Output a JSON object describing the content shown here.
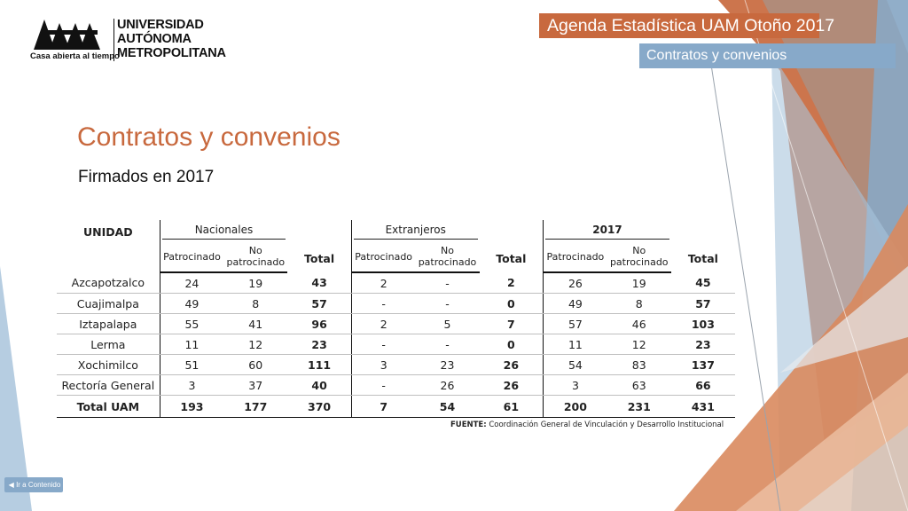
{
  "brand": {
    "name_lines": [
      "UNIVERSIDAD",
      "AUTÓNOMA",
      "METROPOLITANA"
    ],
    "tagline": "Casa abierta al tiempo",
    "logo_icon": "uam-logo-icon"
  },
  "header": {
    "agenda_title": "Agenda Estadística UAM  Otoño 2017",
    "section": "Contratos y convenios"
  },
  "page": {
    "title": "Contratos y convenios",
    "subtitle": "Firmados en 2017"
  },
  "table": {
    "unit_header": "UNIDAD",
    "groups": [
      "Nacionales",
      "Extranjeros",
      "2017"
    ],
    "subheaders": {
      "patrocinado": "Patrocinado",
      "no_patrocinado_1": "No",
      "no_patrocinado_2": "patrocinado",
      "total": "Total"
    },
    "rows": [
      {
        "unidad": "Azcapotzalco",
        "nac_p": "24",
        "nac_np": "19",
        "nac_t": "43",
        "ext_p": "2",
        "ext_np": "-",
        "ext_t": "2",
        "y_p": "26",
        "y_np": "19",
        "y_t": "45"
      },
      {
        "unidad": "Cuajimalpa",
        "nac_p": "49",
        "nac_np": "8",
        "nac_t": "57",
        "ext_p": "-",
        "ext_np": "-",
        "ext_t": "0",
        "y_p": "49",
        "y_np": "8",
        "y_t": "57"
      },
      {
        "unidad": "Iztapalapa",
        "nac_p": "55",
        "nac_np": "41",
        "nac_t": "96",
        "ext_p": "2",
        "ext_np": "5",
        "ext_t": "7",
        "y_p": "57",
        "y_np": "46",
        "y_t": "103"
      },
      {
        "unidad": "Lerma",
        "nac_p": "11",
        "nac_np": "12",
        "nac_t": "23",
        "ext_p": "-",
        "ext_np": "-",
        "ext_t": "0",
        "y_p": "11",
        "y_np": "12",
        "y_t": "23"
      },
      {
        "unidad": "Xochimilco",
        "nac_p": "51",
        "nac_np": "60",
        "nac_t": "111",
        "ext_p": "3",
        "ext_np": "23",
        "ext_t": "26",
        "y_p": "54",
        "y_np": "83",
        "y_t": "137"
      },
      {
        "unidad": "Rectoría General",
        "nac_p": "3",
        "nac_np": "37",
        "nac_t": "40",
        "ext_p": "-",
        "ext_np": "26",
        "ext_t": "26",
        "y_p": "3",
        "y_np": "63",
        "y_t": "66"
      }
    ],
    "total_row": {
      "unidad": "Total UAM",
      "nac_p": "193",
      "nac_np": "177",
      "nac_t": "370",
      "ext_p": "7",
      "ext_np": "54",
      "ext_t": "61",
      "y_p": "200",
      "y_np": "231",
      "y_t": "431"
    }
  },
  "source": {
    "label": "FUENTE:",
    "text": "Coordinación General de Vinculación y Desarrollo Institucional"
  },
  "nav": {
    "back_label": "Ir a Contenido",
    "back_icon": "triangle-left-icon"
  },
  "colors": {
    "accent_orange": "#c8693e",
    "accent_blue": "#87a9c9"
  }
}
